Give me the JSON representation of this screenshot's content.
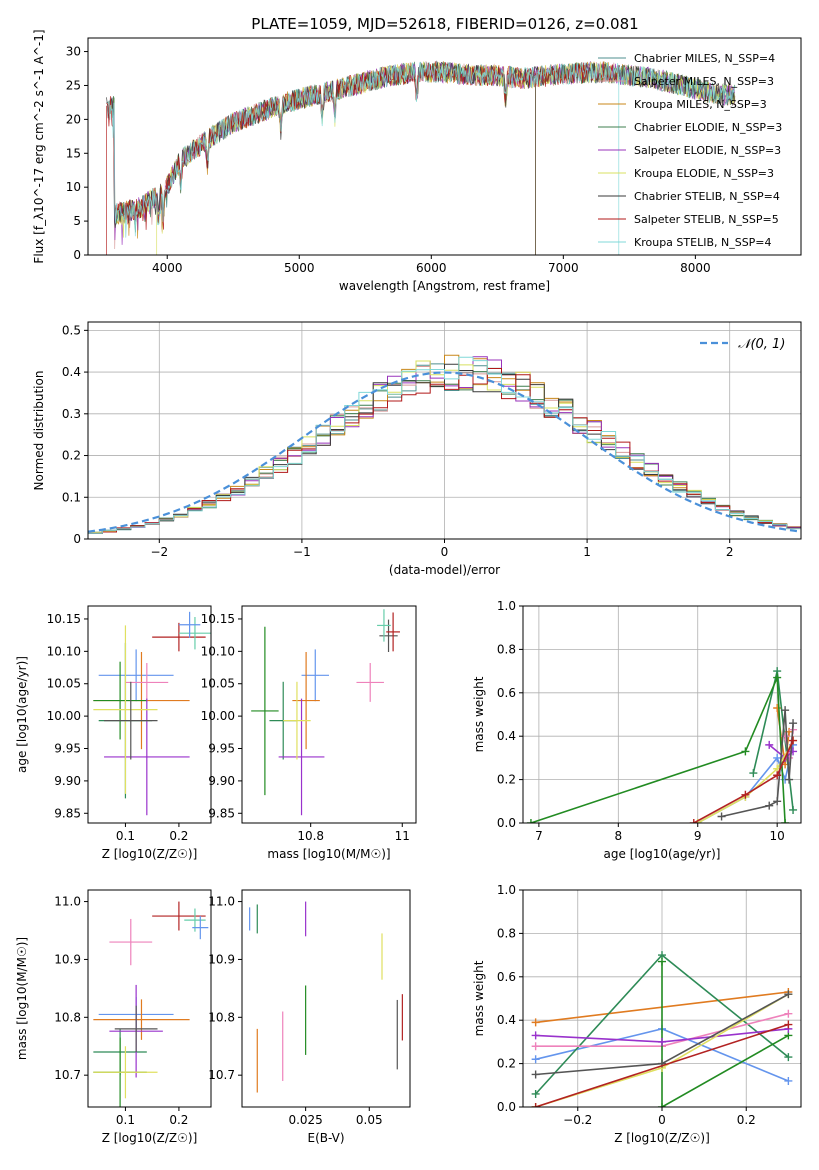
{
  "figure": {
    "title": "PLATE=1059, MJD=52618, FIBERID=0126, z=0.081"
  },
  "colors": {
    "models": [
      "#4f8f8f",
      "#d79a9a",
      "#c8871a",
      "#3f7f4f",
      "#9933bb",
      "#d8e060",
      "#3a3a3a",
      "#b01818",
      "#80d8d8"
    ],
    "pointmodels": [
      "#6495ed",
      "#e07b20",
      "#2e8b57",
      "#ee82bb",
      "#228b22",
      "#9932cc",
      "#e0e060",
      "#555555",
      "#b22222",
      "#66cdaa"
    ],
    "gaussian": "#4a90d9"
  },
  "chart_data": [
    {
      "id": "spectrum",
      "type": "line",
      "xlabel": "wavelength [Angstrom, rest frame]",
      "ylabel": "Flux [f_λ10^-17 erg cm^-2 s^-1 A^-1]",
      "xlim": [
        3400,
        8800
      ],
      "ylim": [
        0,
        32
      ],
      "xticks": [
        4000,
        5000,
        6000,
        7000,
        8000
      ],
      "yticks": [
        0,
        5,
        10,
        15,
        20,
        25,
        30
      ],
      "legend_position": "right",
      "series": [
        {
          "name": "Chabrier MILES, N_SSP=4"
        },
        {
          "name": "Salpeter MILES, N_SSP=3"
        },
        {
          "name": "Kroupa MILES, N_SSP=3"
        },
        {
          "name": "Chabrier ELODIE, N_SSP=3"
        },
        {
          "name": "Salpeter ELODIE, N_SSP=3"
        },
        {
          "name": "Kroupa ELODIE, N_SSP=3"
        },
        {
          "name": "Chabrier STELIB, N_SSP=4"
        },
        {
          "name": "Salpeter STELIB, N_SSP=5"
        },
        {
          "name": "Kroupa STELIB, N_SSP=4"
        }
      ],
      "continuum": {
        "x": [
          3600,
          3800,
          4000,
          4100,
          4300,
          4500,
          4700,
          4900,
          5100,
          5300,
          5500,
          5700,
          5900,
          6100,
          6300,
          6500,
          6700,
          6900,
          7100,
          7300,
          7500,
          7700,
          7900,
          8100,
          8300,
          8500,
          8700
        ],
        "y": [
          6,
          7,
          10,
          14,
          17,
          19.5,
          21,
          22.5,
          23.5,
          24.5,
          25.5,
          26.5,
          27,
          27,
          26.5,
          26.5,
          26,
          26.5,
          26.8,
          27,
          26.5,
          26,
          25,
          24,
          23.5,
          23,
          22
        ]
      }
    },
    {
      "id": "residuals",
      "type": "histogram",
      "xlabel": "(data-model)/error",
      "ylabel": "Normed distribution",
      "xlim": [
        -2.5,
        2.5
      ],
      "ylim": [
        0,
        0.52
      ],
      "xticks": [
        -2,
        -1,
        0,
        1,
        2
      ],
      "yticks": [
        0.0,
        0.1,
        0.2,
        0.3,
        0.4,
        0.5
      ],
      "legend": "𝒩(0, 1)",
      "legend_position": "top-right",
      "bin_width": 0.1,
      "grid": true
    },
    {
      "id": "age-vs-z",
      "type": "scatter",
      "xlabel": "Z [log10(Z/Z☉)]",
      "ylabel": "age  [log10(age/yr)]",
      "xlim": [
        0.03,
        0.26
      ],
      "ylim": [
        9.835,
        10.17
      ],
      "xticks": [
        0.1,
        0.2
      ],
      "yticks": [
        9.85,
        9.9,
        9.95,
        10.0,
        10.05,
        10.1,
        10.15
      ],
      "points": [
        {
          "x": 0.12,
          "xerr": 0.07,
          "y": 10.063,
          "yerr": 0.04
        },
        {
          "x": 0.13,
          "xerr": 0.09,
          "y": 10.024,
          "yerr": 0.075
        },
        {
          "x": 0.1,
          "xerr": 0.05,
          "y": 9.993,
          "yerr": 0.12
        },
        {
          "x": 0.14,
          "xerr": 0.04,
          "y": 10.052,
          "yerr": 0.03
        },
        {
          "x": 0.09,
          "xerr": 0.05,
          "y": 10.024,
          "yerr": 0.06
        },
        {
          "x": 0.14,
          "xerr": 0.08,
          "y": 9.937,
          "yerr": 0.09
        },
        {
          "x": 0.1,
          "xerr": 0.06,
          "y": 10.01,
          "yerr": 0.13
        },
        {
          "x": 0.11,
          "xerr": 0.05,
          "y": 9.993,
          "yerr": 0.06
        },
        {
          "x": 0.2,
          "xerr": 0.05,
          "y": 10.122,
          "yerr": 0.022
        },
        {
          "x": 0.23,
          "xerr": 0.03,
          "y": 10.128,
          "yerr": 0.025
        },
        {
          "x": 0.22,
          "xerr": 0.02,
          "y": 10.141,
          "yerr": 0.02
        }
      ]
    },
    {
      "id": "age-vs-mass",
      "type": "scatter",
      "xlabel": "mass [log10(M/M☉)]",
      "ylabel": "",
      "xlim": [
        10.65,
        11.03
      ],
      "ylim": [
        9.835,
        10.17
      ],
      "xticks": [
        10.8,
        11.0
      ],
      "yticks": [
        9.85,
        9.9,
        9.95,
        10.0,
        10.05,
        10.1,
        10.15
      ],
      "points": [
        {
          "x": 10.81,
          "xerr": 0.03,
          "y": 10.063,
          "yerr": 0.04
        },
        {
          "x": 10.79,
          "xerr": 0.03,
          "y": 10.024,
          "yerr": 0.075
        },
        {
          "x": 10.74,
          "xerr": 0.03,
          "y": 9.993,
          "yerr": 0.06
        },
        {
          "x": 10.93,
          "xerr": 0.03,
          "y": 10.052,
          "yerr": 0.03
        },
        {
          "x": 10.7,
          "xerr": 0.03,
          "y": 10.008,
          "yerr": 0.13
        },
        {
          "x": 10.78,
          "xerr": 0.05,
          "y": 9.937,
          "yerr": 0.09
        },
        {
          "x": 10.77,
          "xerr": 0.03,
          "y": 9.993,
          "yerr": 0.06
        },
        {
          "x": 10.97,
          "xerr": 0.02,
          "y": 10.124,
          "yerr": 0.025
        },
        {
          "x": 10.98,
          "xerr": 0.015,
          "y": 10.13,
          "yerr": 0.03
        },
        {
          "x": 10.96,
          "xerr": 0.015,
          "y": 10.14,
          "yerr": 0.025
        }
      ]
    },
    {
      "id": "weight-vs-age",
      "type": "line",
      "xlabel": "age  [log10(age/yr)]",
      "ylabel": "mass weight",
      "xlim": [
        6.8,
        10.3
      ],
      "ylim": [
        0,
        1.0
      ],
      "xticks": [
        7,
        8,
        9,
        10
      ],
      "yticks": [
        0.0,
        0.2,
        0.4,
        0.6,
        0.8,
        1.0
      ],
      "grid": true,
      "series": [
        {
          "x": [
            9.0,
            9.6,
            10.0,
            10.1,
            10.2
          ],
          "y": [
            0.0,
            0.12,
            0.3,
            0.2,
            0.36
          ]
        },
        {
          "x": [
            10.0,
            10.1,
            10.15
          ],
          "y": [
            0.53,
            0.27,
            0.42
          ]
        },
        {
          "x": [
            9.7,
            10.0,
            10.2
          ],
          "y": [
            0.23,
            0.7,
            0.06
          ]
        },
        {
          "x": [
            10.1,
            10.15,
            10.2
          ],
          "y": [
            0.4,
            0.3,
            0.43
          ]
        },
        {
          "x": [
            6.9,
            9.6,
            10.0,
            10.1
          ],
          "y": [
            0.0,
            0.33,
            0.67,
            0.0
          ]
        },
        {
          "x": [
            9.9,
            10.1,
            10.2
          ],
          "y": [
            0.36,
            0.3,
            0.33
          ]
        },
        {
          "x": [
            9.0,
            9.6,
            10.0,
            10.2
          ],
          "y": [
            0.0,
            0.12,
            0.25,
            0.38
          ]
        },
        {
          "x": [
            9.3,
            9.9,
            10.0,
            10.1,
            10.15,
            10.2
          ],
          "y": [
            0.03,
            0.08,
            0.1,
            0.52,
            0.2,
            0.46
          ]
        },
        {
          "x": [
            8.95,
            9.6,
            10.0,
            10.2
          ],
          "y": [
            0.0,
            0.13,
            0.22,
            0.38
          ]
        }
      ]
    },
    {
      "id": "mass-vs-z",
      "type": "scatter",
      "xlabel": "Z [log10(Z/Z☉)]",
      "ylabel": "mass [log10(M/M☉)]",
      "xlim": [
        0.03,
        0.26
      ],
      "ylim": [
        10.645,
        11.02
      ],
      "xticks": [
        0.1,
        0.2
      ],
      "yticks": [
        10.7,
        10.8,
        10.9,
        11.0
      ],
      "points": [
        {
          "x": 0.12,
          "xerr": 0.07,
          "y": 10.805,
          "yerr": 0.03
        },
        {
          "x": 0.13,
          "xerr": 0.09,
          "y": 10.796,
          "yerr": 0.035
        },
        {
          "x": 0.09,
          "xerr": 0.05,
          "y": 10.74,
          "yerr": 0.04
        },
        {
          "x": 0.11,
          "xerr": 0.04,
          "y": 10.93,
          "yerr": 0.04
        },
        {
          "x": 0.09,
          "xerr": 0.05,
          "y": 10.705,
          "yerr": 0.06
        },
        {
          "x": 0.12,
          "xerr": 0.05,
          "y": 10.776,
          "yerr": 0.08
        },
        {
          "x": 0.1,
          "xerr": 0.06,
          "y": 10.705,
          "yerr": 0.045
        },
        {
          "x": 0.12,
          "xerr": 0.04,
          "y": 10.78,
          "yerr": 0.04
        },
        {
          "x": 0.2,
          "xerr": 0.05,
          "y": 10.975,
          "yerr": 0.025
        },
        {
          "x": 0.23,
          "xerr": 0.02,
          "y": 10.968,
          "yerr": 0.02
        },
        {
          "x": 0.24,
          "xerr": 0.015,
          "y": 10.955,
          "yerr": 0.02
        }
      ]
    },
    {
      "id": "mass-vs-ebv",
      "type": "scatter",
      "xlabel": "E(B-V)",
      "ylabel": "",
      "xlim": [
        0.0,
        0.066
      ],
      "ylim": [
        10.645,
        11.02
      ],
      "xticks": [
        0.025,
        0.05
      ],
      "yticks": [
        10.7,
        10.8,
        10.9,
        11.0
      ],
      "points": [
        {
          "x": 0.003,
          "y": 10.97,
          "yerr": 0.02
        },
        {
          "x": 0.006,
          "y": 10.725,
          "yerr": 0.055
        },
        {
          "x": 0.006,
          "y": 10.97,
          "yerr": 0.025
        },
        {
          "x": 0.016,
          "y": 10.75,
          "yerr": 0.06
        },
        {
          "x": 0.025,
          "y": 10.795,
          "yerr": 0.06
        },
        {
          "x": 0.025,
          "y": 10.97,
          "yerr": 0.03
        },
        {
          "x": 0.055,
          "y": 10.905,
          "yerr": 0.04
        },
        {
          "x": 0.061,
          "y": 10.77,
          "yerr": 0.06
        },
        {
          "x": 0.063,
          "y": 10.8,
          "yerr": 0.04
        }
      ]
    },
    {
      "id": "weight-vs-z",
      "type": "line",
      "xlabel": "Z [log10(Z/Z☉)]",
      "ylabel": "mass weight",
      "xlim": [
        -0.33,
        0.33
      ],
      "ylim": [
        0,
        1.0
      ],
      "xticks": [
        -0.2,
        0.0,
        0.2
      ],
      "yticks": [
        0.0,
        0.2,
        0.4,
        0.6,
        0.8,
        1.0
      ],
      "grid": true,
      "series": [
        {
          "x": [
            -0.3,
            0.0,
            0.3
          ],
          "y": [
            0.22,
            0.36,
            0.12
          ]
        },
        {
          "x": [
            -0.3,
            0.3
          ],
          "y": [
            0.39,
            0.53
          ]
        },
        {
          "x": [
            -0.3,
            0.0,
            0.3
          ],
          "y": [
            0.06,
            0.7,
            0.23
          ]
        },
        {
          "x": [
            -0.3,
            0.0,
            0.3
          ],
          "y": [
            0.28,
            0.28,
            0.43
          ]
        },
        {
          "x": [
            0.0,
            0.0,
            0.3
          ],
          "y": [
            0.67,
            0.0,
            0.33
          ]
        },
        {
          "x": [
            -0.3,
            0.0,
            0.3
          ],
          "y": [
            0.33,
            0.3,
            0.36
          ]
        },
        {
          "x": [
            -0.3,
            0.0,
            0.3
          ],
          "y": [
            0.0,
            0.18,
            0.52
          ]
        },
        {
          "x": [
            -0.3,
            0.0,
            0.3
          ],
          "y": [
            0.15,
            0.2,
            0.52
          ]
        },
        {
          "x": [
            -0.3,
            0.3
          ],
          "y": [
            0.0,
            0.38
          ]
        }
      ]
    }
  ]
}
